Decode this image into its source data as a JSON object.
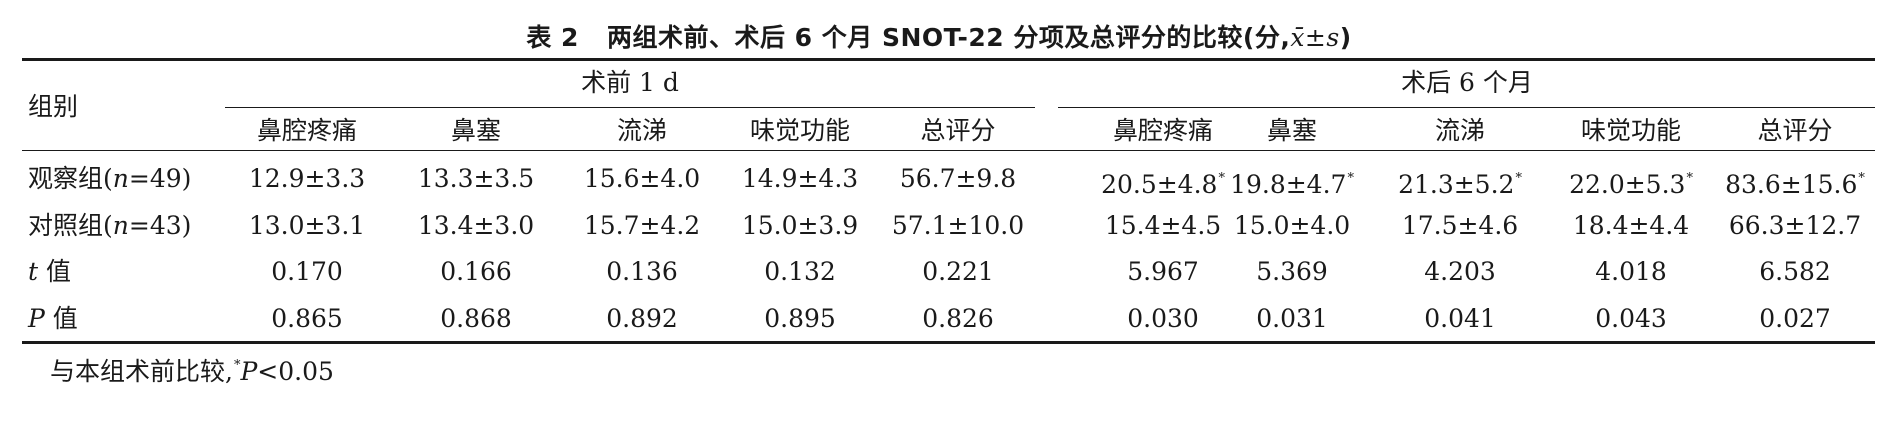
{
  "table": {
    "caption_label": "表 2",
    "caption_text": "两组术前、术后 6 个月 SNOT-22 分项及总评分的比较(分,",
    "caption_stat": "x̄±s",
    "caption_close": ")",
    "row_header": "组别",
    "group_pre": "术前 1 d",
    "group_post": "术后 6 个月",
    "columns": [
      "鼻腔疼痛",
      "鼻塞",
      "流涕",
      "味觉功能",
      "总评分",
      "鼻腔疼痛",
      "鼻塞",
      "流涕",
      "味觉功能",
      "总评分"
    ],
    "rows": [
      {
        "label_pre": "观察组(",
        "label_n": "n",
        "label_post": "=49)",
        "cells": [
          "12.9±3.3",
          "13.3±3.5",
          "15.6±4.0",
          "14.9±4.3",
          "56.7±9.8",
          "20.5±4.8",
          "19.8±4.7",
          "21.3±5.2",
          "22.0±5.3",
          "83.6±15.6"
        ],
        "marks": [
          "",
          "",
          "",
          "",
          "",
          "*",
          "*",
          "*",
          "*",
          "*"
        ]
      },
      {
        "label_pre": "对照组(",
        "label_n": "n",
        "label_post": "=43)",
        "cells": [
          "13.0±3.1",
          "13.4±3.0",
          "15.7±4.2",
          "15.0±3.9",
          "57.1±10.0",
          "15.4±4.5",
          "15.0±4.0",
          "17.5±4.6",
          "18.4±4.4",
          "66.3±12.7"
        ],
        "marks": [
          "",
          "",
          "",
          "",
          "",
          "",
          "",
          "",
          "",
          ""
        ]
      },
      {
        "label_pre": "",
        "label_n": "t",
        "label_post": " 值",
        "cells": [
          "0.170",
          "0.166",
          "0.136",
          "0.132",
          "0.221",
          "5.967",
          "5.369",
          "4.203",
          "4.018",
          "6.582"
        ],
        "marks": [
          "",
          "",
          "",
          "",
          "",
          "",
          "",
          "",
          "",
          ""
        ]
      },
      {
        "label_pre": "",
        "label_n": "P",
        "label_post": " 值",
        "cells": [
          "0.865",
          "0.868",
          "0.892",
          "0.895",
          "0.826",
          "0.030",
          "0.031",
          "0.041",
          "0.043",
          "0.027"
        ],
        "marks": [
          "",
          "",
          "",
          "",
          "",
          "",
          "",
          "",
          "",
          ""
        ]
      }
    ],
    "footnote_pre": "与本组术前比较,",
    "footnote_mark": "*",
    "footnote_p": "P",
    "footnote_post": "<0.05"
  }
}
